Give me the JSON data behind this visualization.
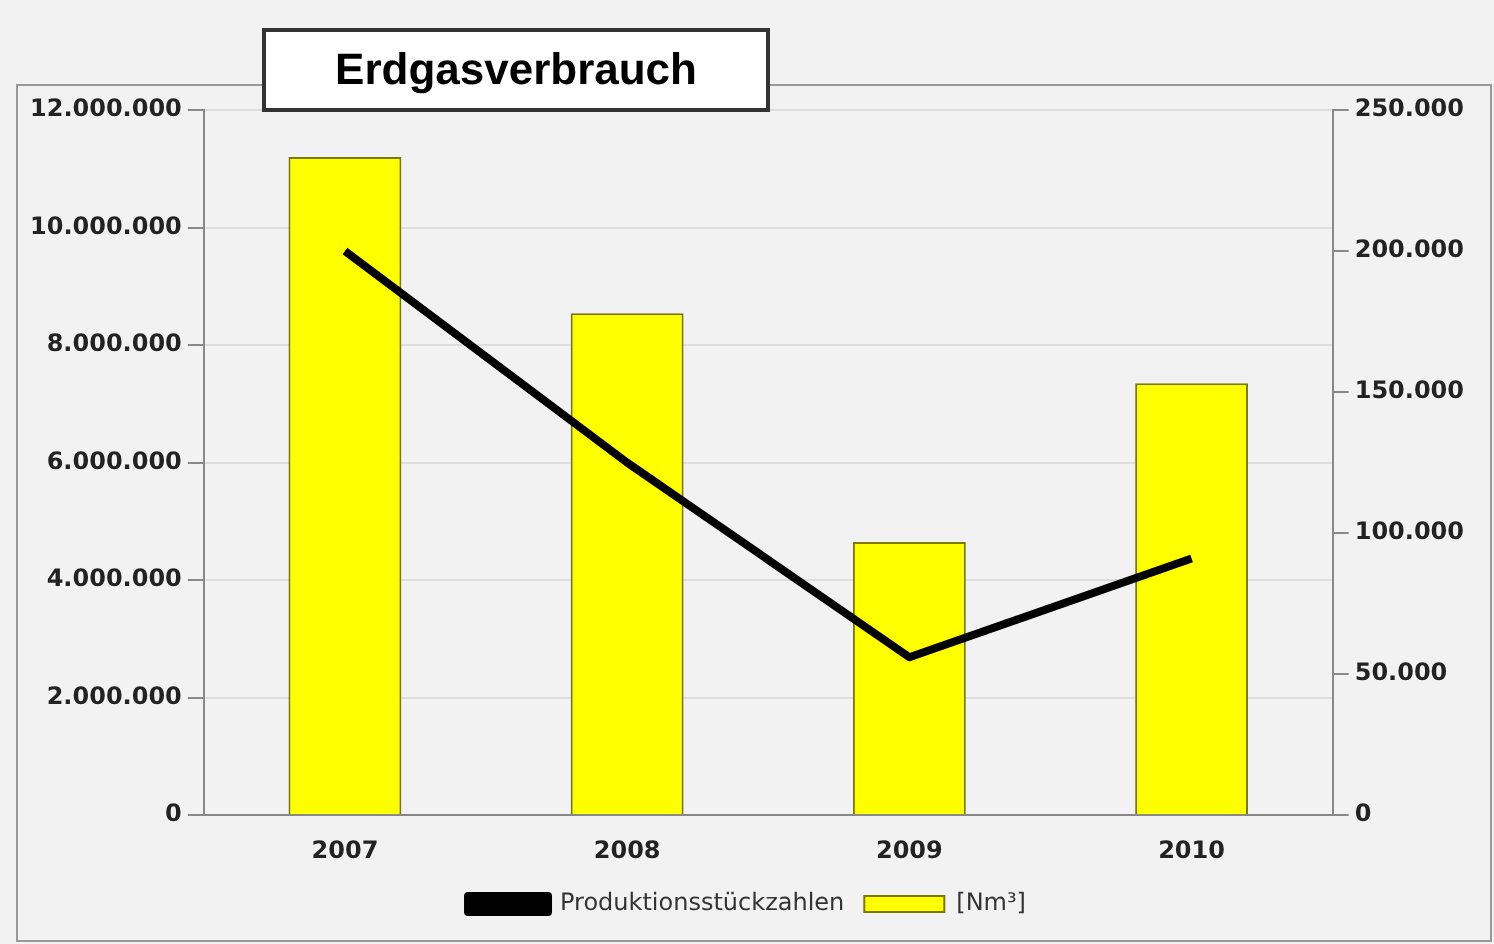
{
  "chart_data": {
    "type": "bar",
    "title": "Erdgasverbrauch",
    "categories": [
      "2007",
      "2008",
      "2009",
      "2010"
    ],
    "series": [
      {
        "name": "[Nm³]",
        "color": "#ffff00",
        "values": [
          11200000,
          8540000,
          4650000,
          7350000
        ]
      },
      {
        "name": "Produktionsstückzahlen",
        "type": "line",
        "axis": "y2",
        "color": "#000000",
        "values": [
          200000,
          125000,
          56000,
          91000
        ]
      }
    ],
    "ylim": [
      0,
      12000000
    ],
    "yticks": [
      {
        "value": 0,
        "label": "0"
      },
      {
        "value": 2000000,
        "label": "2.000.000"
      },
      {
        "value": 4000000,
        "label": "4.000.000"
      },
      {
        "value": 6000000,
        "label": "6.000.000"
      },
      {
        "value": 8000000,
        "label": "8.000.000"
      },
      {
        "value": 10000000,
        "label": "10.000.000"
      },
      {
        "value": 12000000,
        "label": "12.000.000"
      }
    ],
    "y2lim": [
      0,
      250000
    ],
    "y2ticks": [
      {
        "value": 0,
        "label": "0"
      },
      {
        "value": 50000,
        "label": "50.000"
      },
      {
        "value": 100000,
        "label": "100.000"
      },
      {
        "value": 150000,
        "label": "150.000"
      },
      {
        "value": 200000,
        "label": "200.000"
      },
      {
        "value": 250000,
        "label": "250.000"
      }
    ],
    "grid": "y",
    "legend": "bottom",
    "marker": "none"
  }
}
